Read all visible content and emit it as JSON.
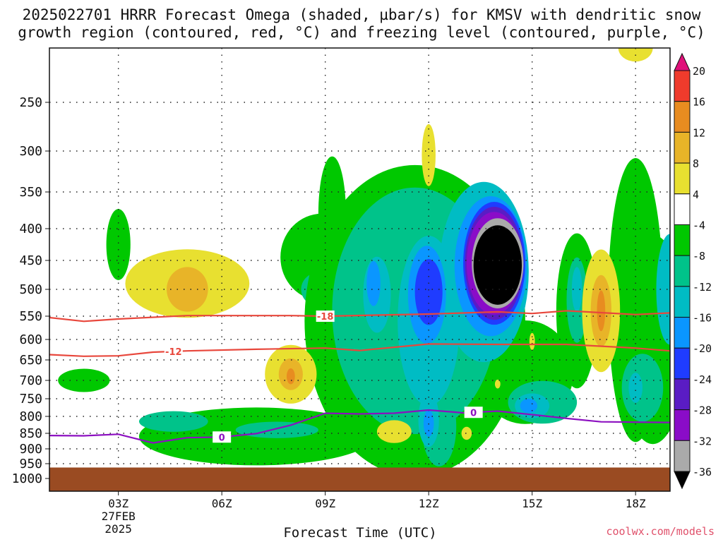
{
  "title_line1": "2025022701 HRRR Forecast Omega (shaded, µbar/s) for KMSV with dendritic snow",
  "title_line2": "growth region (contoured, red, °C) and freezing level (contoured, purple, °C)",
  "credit": "coolwx.com/models",
  "colors": {
    "ground": "#9a4b22",
    "dgz": "#e8473c",
    "freezing": "#8c10c0",
    "up4": "#00c800",
    "up8": "#00c38a",
    "up12": "#00bcc4",
    "up16": "#0a96ff",
    "up20": "#1f3cff",
    "up24": "#5a1cc4",
    "up28": "#8a0cc8",
    "up32": "#aaaaaa",
    "up36": "#000000",
    "dn4": "#e8e030",
    "dn8": "#e8b428",
    "dn12": "#e88c20",
    "dn16": "#ef3b2c",
    "dn20": "#e0117a"
  },
  "chart_data": {
    "type": "heatmap",
    "title": "2025022701 HRRR Forecast Omega (shaded, µbar/s) for KMSV with dendritic snow growth region (contoured, red, °C) and freezing level (contoured, purple, °C)",
    "xlabel": "Forecast Time (UTC)",
    "ylabel": "",
    "x_ticks": [
      {
        "hour": 3,
        "label": "03Z",
        "sub": [
          "27FEB",
          "2025"
        ]
      },
      {
        "hour": 6,
        "label": "06Z"
      },
      {
        "hour": 9,
        "label": "09Z"
      },
      {
        "hour": 12,
        "label": "12Z"
      },
      {
        "hour": 15,
        "label": "15Z"
      },
      {
        "hour": 18,
        "label": "18Z"
      }
    ],
    "xlim": [
      1.0,
      19.0
    ],
    "y_ticks": [
      250,
      300,
      350,
      400,
      450,
      500,
      550,
      600,
      650,
      700,
      750,
      800,
      850,
      900,
      950,
      1000
    ],
    "ylim_hPa": [
      1000,
      200
    ],
    "grid": true,
    "surface_hPa": 963,
    "colorbar": {
      "levels": [
        20,
        16,
        12,
        8,
        4,
        -4,
        -8,
        -12,
        -16,
        -20,
        -24,
        -28,
        -32,
        -36
      ],
      "units": "µbar/s"
    },
    "contours": [
      {
        "name": "dendritic snow growth -18",
        "label": "-18",
        "points": [
          [
            1.0,
            553
          ],
          [
            2.0,
            561
          ],
          [
            3.0,
            556
          ],
          [
            5.0,
            549
          ],
          [
            8.0,
            549
          ],
          [
            9.0,
            550
          ],
          [
            12.0,
            546
          ],
          [
            14.0,
            542
          ],
          [
            15.0,
            545
          ],
          [
            16.0,
            540
          ],
          [
            18.0,
            547
          ],
          [
            19.0,
            544
          ]
        ]
      },
      {
        "name": "dendritic snow growth -12",
        "label": "-12",
        "points": [
          [
            1.0,
            637
          ],
          [
            2.0,
            641
          ],
          [
            3.0,
            640
          ],
          [
            4.0,
            631
          ],
          [
            5.0,
            628
          ],
          [
            7.0,
            624
          ],
          [
            9.0,
            621
          ],
          [
            10.0,
            627
          ],
          [
            12.0,
            611
          ],
          [
            14.0,
            612
          ],
          [
            16.0,
            612
          ],
          [
            18.0,
            621
          ],
          [
            19.0,
            628
          ]
        ]
      },
      {
        "name": "freezing level 0",
        "label": "0",
        "points": [
          [
            1.0,
            857
          ],
          [
            2.0,
            858
          ],
          [
            3.0,
            853
          ],
          [
            4.0,
            881
          ],
          [
            5.0,
            864
          ],
          [
            6.0,
            862
          ],
          [
            7.0,
            851
          ],
          [
            8.0,
            826
          ],
          [
            9.0,
            791
          ],
          [
            10.0,
            793
          ],
          [
            11.0,
            791
          ],
          [
            12.0,
            782
          ],
          [
            13.0,
            790
          ],
          [
            14.0,
            785
          ],
          [
            15.0,
            795
          ],
          [
            16.0,
            806
          ],
          [
            17.0,
            816
          ],
          [
            19.0,
            818
          ]
        ]
      }
    ],
    "regions": [
      {
        "level": -4,
        "cx": 2.0,
        "cy": 700,
        "rx": 0.75,
        "ry": 30
      },
      {
        "level": -4,
        "cx": 3.0,
        "cy": 425,
        "rx": 0.35,
        "ry": 55
      },
      {
        "level": -4,
        "cx": 7.0,
        "cy": 860,
        "rx": 3.4,
        "ry": 90
      },
      {
        "level": -8,
        "cx": 4.6,
        "cy": 815,
        "rx": 1.0,
        "ry": 30
      },
      {
        "level": -8,
        "cx": 7.6,
        "cy": 840,
        "rx": 1.2,
        "ry": 25
      },
      {
        "level": -4,
        "cx": 8.9,
        "cy": 445,
        "rx": 1.2,
        "ry": 70
      },
      {
        "level": -4,
        "cx": 9.2,
        "cy": 380,
        "rx": 0.4,
        "ry": 80
      },
      {
        "level": -8,
        "cx": 8.8,
        "cy": 500,
        "rx": 0.5,
        "ry": 30
      },
      {
        "level": -4,
        "cx": 11.6,
        "cy": 560,
        "rx": 3.2,
        "ry": 290
      },
      {
        "level": -4,
        "cx": 11.4,
        "cy": 810,
        "rx": 1.3,
        "ry": 150
      },
      {
        "level": -4,
        "cx": 14.8,
        "cy": 680,
        "rx": 1.4,
        "ry": 130
      },
      {
        "level": -8,
        "cx": 11.6,
        "cy": 540,
        "rx": 2.4,
        "ry": 230
      },
      {
        "level": -8,
        "cx": 12.3,
        "cy": 830,
        "rx": 0.5,
        "ry": 120
      },
      {
        "level": -8,
        "cx": 15.3,
        "cy": 760,
        "rx": 1.0,
        "ry": 60
      },
      {
        "level": -12,
        "cx": 10.5,
        "cy": 510,
        "rx": 0.4,
        "ry": 70
      },
      {
        "level": -12,
        "cx": 12.0,
        "cy": 560,
        "rx": 0.9,
        "ry": 170
      },
      {
        "level": -12,
        "cx": 13.6,
        "cy": 470,
        "rx": 1.3,
        "ry": 150
      },
      {
        "level": -12,
        "cx": 12.0,
        "cy": 810,
        "rx": 0.3,
        "ry": 80
      },
      {
        "level": -12,
        "cx": 15.0,
        "cy": 770,
        "rx": 0.5,
        "ry": 35
      },
      {
        "level": -16,
        "cx": 10.4,
        "cy": 490,
        "rx": 0.2,
        "ry": 40
      },
      {
        "level": -16,
        "cx": 11.95,
        "cy": 510,
        "rx": 0.55,
        "ry": 90
      },
      {
        "level": -16,
        "cx": 13.8,
        "cy": 460,
        "rx": 1.05,
        "ry": 115
      },
      {
        "level": -16,
        "cx": 12.0,
        "cy": 820,
        "rx": 0.15,
        "ry": 40
      },
      {
        "level": -16,
        "cx": 14.9,
        "cy": 770,
        "rx": 0.25,
        "ry": 20
      },
      {
        "level": -20,
        "cx": 12.0,
        "cy": 505,
        "rx": 0.4,
        "ry": 60
      },
      {
        "level": -20,
        "cx": 13.9,
        "cy": 455,
        "rx": 0.9,
        "ry": 100
      },
      {
        "level": -24,
        "cx": 13.9,
        "cy": 455,
        "rx": 0.85,
        "ry": 92
      },
      {
        "level": -28,
        "cx": 13.9,
        "cy": 455,
        "rx": 0.8,
        "ry": 84
      },
      {
        "level": -32,
        "cx": 14.0,
        "cy": 455,
        "rx": 0.75,
        "ry": 74
      },
      {
        "level": -36,
        "cx": 14.0,
        "cy": 458,
        "rx": 0.7,
        "ry": 66
      },
      {
        "level": -4,
        "cx": 16.3,
        "cy": 540,
        "rx": 0.6,
        "ry": 150
      },
      {
        "level": -8,
        "cx": 16.3,
        "cy": 520,
        "rx": 0.3,
        "ry": 80
      },
      {
        "level": -12,
        "cx": 16.3,
        "cy": 500,
        "rx": 0.15,
        "ry": 40
      },
      {
        "level": -4,
        "cx": 18.0,
        "cy": 520,
        "rx": 0.8,
        "ry": 250
      },
      {
        "level": -4,
        "cx": 18.5,
        "cy": 600,
        "rx": 1.0,
        "ry": 220
      },
      {
        "level": -8,
        "cx": 18.2,
        "cy": 720,
        "rx": 0.6,
        "ry": 90
      },
      {
        "level": -12,
        "cx": 18.0,
        "cy": 720,
        "rx": 0.2,
        "ry": 40
      },
      {
        "level": -12,
        "cx": 19.0,
        "cy": 500,
        "rx": 0.4,
        "ry": 100
      },
      {
        "level": 4,
        "cx": 5.0,
        "cy": 490,
        "rx": 1.8,
        "ry": 60
      },
      {
        "level": 8,
        "cx": 5.0,
        "cy": 500,
        "rx": 0.6,
        "ry": 40
      },
      {
        "level": 4,
        "cx": 8.0,
        "cy": 685,
        "rx": 0.75,
        "ry": 75
      },
      {
        "level": 8,
        "cx": 8.0,
        "cy": 685,
        "rx": 0.35,
        "ry": 40
      },
      {
        "level": 12,
        "cx": 8.0,
        "cy": 690,
        "rx": 0.12,
        "ry": 20
      },
      {
        "level": 4,
        "cx": 12.0,
        "cy": 305,
        "rx": 0.2,
        "ry": 35
      },
      {
        "level": 4,
        "cx": 11.0,
        "cy": 845,
        "rx": 0.5,
        "ry": 35
      },
      {
        "level": 4,
        "cx": 13.1,
        "cy": 850,
        "rx": 0.15,
        "ry": 20
      },
      {
        "level": 4,
        "cx": 14.0,
        "cy": 710,
        "rx": 0.08,
        "ry": 12
      },
      {
        "level": 4,
        "cx": 15.0,
        "cy": 605,
        "rx": 0.08,
        "ry": 20
      },
      {
        "level": 4,
        "cx": 17.0,
        "cy": 540,
        "rx": 0.55,
        "ry": 120
      },
      {
        "level": 8,
        "cx": 17.0,
        "cy": 540,
        "rx": 0.3,
        "ry": 70
      },
      {
        "level": 12,
        "cx": 17.0,
        "cy": 540,
        "rx": 0.12,
        "ry": 40
      },
      {
        "level": 4,
        "cx": 18.0,
        "cy": 200,
        "rx": 0.5,
        "ry": 25
      }
    ]
  }
}
